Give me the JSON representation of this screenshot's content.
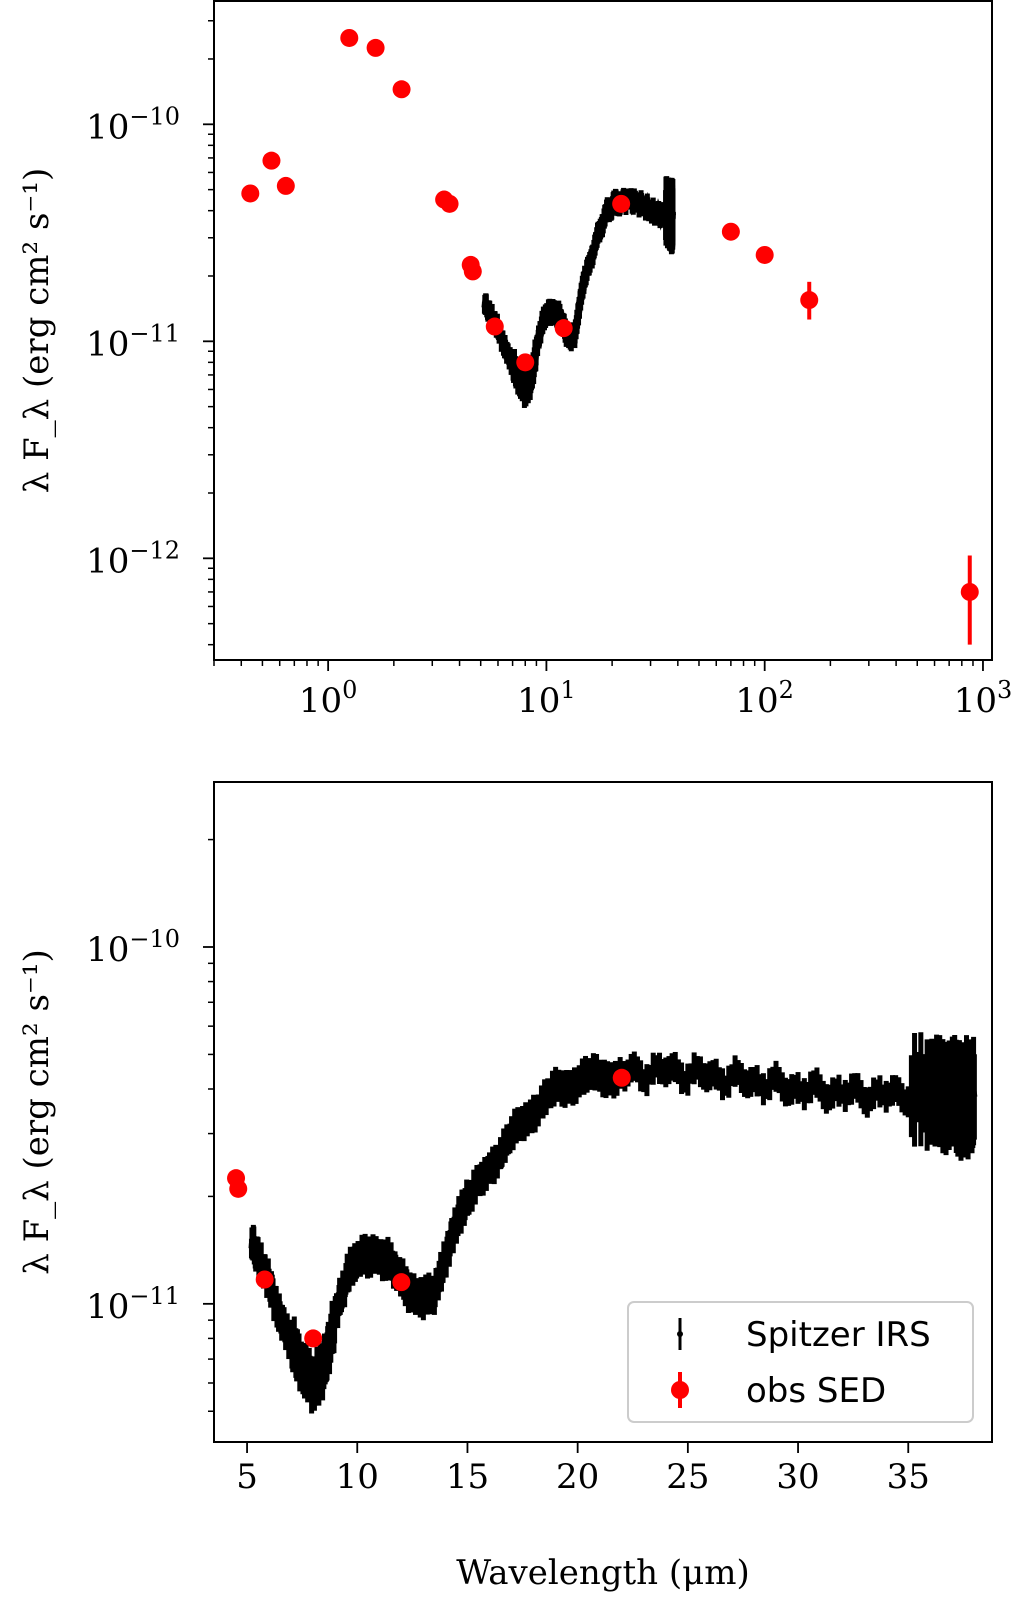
{
  "chart_data": [
    {
      "type": "scatter",
      "xscale": "log",
      "yscale": "log",
      "xlim": [
        0.3,
        1100
      ],
      "ylim": [
        3.4e-13,
        3.7e-10
      ],
      "xlabel": "",
      "ylabel": "λ F_λ (erg cm² s⁻¹)",
      "x_ticks": [
        {
          "base": "10",
          "exp": "0",
          "value": 1
        },
        {
          "base": "10",
          "exp": "1",
          "value": 10
        },
        {
          "base": "10",
          "exp": "2",
          "value": 100
        },
        {
          "base": "10",
          "exp": "3",
          "value": 1000
        }
      ],
      "y_ticks": [
        {
          "base": "10",
          "exp": "−12",
          "value": 1e-12
        },
        {
          "base": "10",
          "exp": "−11",
          "value": 1e-11
        },
        {
          "base": "10",
          "exp": "−10",
          "value": 1e-10
        }
      ],
      "series": [
        {
          "name": "Spitzer IRS",
          "color": "#000000",
          "kind": "spectrum",
          "x": [
            5.2,
            5.5,
            6.0,
            6.5,
            7.0,
            7.5,
            8.0,
            8.4,
            8.8,
            9.2,
            9.6,
            10.0,
            10.5,
            11.0,
            11.5,
            12.0,
            12.5,
            13.0,
            13.5,
            14.0,
            14.5,
            15.0,
            16.0,
            17.0,
            18.0,
            19.0,
            20.0,
            21.0,
            22.0,
            24.0,
            26.0,
            28.0,
            30.0,
            32.0,
            34.0,
            36.0,
            37.0,
            37.5,
            38.0
          ],
          "y": [
            1.5e-11,
            1.35e-11,
            1.15e-11,
            9.2e-12,
            7.8e-12,
            6.6e-12,
            6e-12,
            6.4e-12,
            8e-12,
            1.03e-11,
            1.22e-11,
            1.33e-11,
            1.38e-11,
            1.36e-11,
            1.3e-11,
            1.17e-11,
            1.07e-11,
            1.04e-11,
            1.06e-11,
            1.35e-11,
            1.7e-11,
            1.95e-11,
            2.4e-11,
            2.95e-11,
            3.5e-11,
            3.95e-11,
            4.25e-11,
            4.35e-11,
            4.4e-11,
            4.5e-11,
            4.35e-11,
            4.2e-11,
            4e-11,
            3.9e-11,
            3.85e-11,
            3.9e-11,
            4e-11,
            3.7e-11,
            3.8e-11
          ]
        },
        {
          "name": "obs SED",
          "color": "#ff0000",
          "kind": "points",
          "x": [
            0.44,
            0.55,
            0.64,
            1.25,
            1.65,
            2.17,
            3.4,
            3.6,
            4.5,
            4.6,
            5.8,
            8.0,
            12.0,
            22.0,
            70.0,
            100.0,
            160.0,
            870.0
          ],
          "y": [
            4.8e-11,
            6.8e-11,
            5.2e-11,
            2.5e-10,
            2.25e-10,
            1.45e-10,
            4.5e-11,
            4.3e-11,
            2.25e-11,
            2.1e-11,
            1.17e-11,
            8e-12,
            1.15e-11,
            4.3e-11,
            3.2e-11,
            2.5e-11,
            1.55e-11,
            7e-13
          ],
          "yerr_low": [
            0,
            0,
            0,
            0,
            0,
            0,
            0,
            0,
            0,
            0,
            0,
            0,
            0,
            0,
            0,
            0,
            2.9e-12,
            3e-13
          ],
          "yerr_high": [
            0,
            0,
            0,
            0,
            0,
            0,
            0,
            0,
            0,
            0,
            0,
            0,
            0,
            0,
            0,
            0,
            3.3e-12,
            3.3e-13
          ]
        }
      ]
    },
    {
      "type": "scatter",
      "xscale": "linear",
      "yscale": "log",
      "xlim": [
        3.5,
        38.8
      ],
      "ylim": [
        4.1e-12,
        2.9e-10
      ],
      "xlabel": "Wavelength (μm)",
      "ylabel": "λ F_λ (erg cm² s⁻¹)",
      "x_ticks": [
        5,
        10,
        15,
        20,
        25,
        30,
        35
      ],
      "y_ticks": [
        {
          "base": "10",
          "exp": "−11",
          "value": 1e-11
        },
        {
          "base": "10",
          "exp": "−10",
          "value": 1e-10
        }
      ],
      "legend": {
        "placement": "lower-right",
        "entries": [
          {
            "label": "Spitzer IRS",
            "color": "#000000"
          },
          {
            "label": "obs SED",
            "color": "#ff0000"
          }
        ]
      },
      "series": [
        {
          "name": "Spitzer IRS",
          "color": "#000000",
          "kind": "spectrum",
          "x": [
            5.2,
            5.5,
            6.0,
            6.5,
            7.0,
            7.5,
            8.0,
            8.4,
            8.8,
            9.2,
            9.6,
            10.0,
            10.5,
            11.0,
            11.5,
            12.0,
            12.5,
            13.0,
            13.5,
            14.0,
            14.5,
            15.0,
            16.0,
            17.0,
            18.0,
            19.0,
            20.0,
            21.0,
            22.0,
            24.0,
            26.0,
            28.0,
            30.0,
            32.0,
            34.0,
            36.0,
            37.0,
            37.5,
            38.0
          ],
          "y": [
            1.5e-11,
            1.35e-11,
            1.15e-11,
            9.2e-12,
            7.8e-12,
            6.6e-12,
            6e-12,
            6.4e-12,
            8e-12,
            1.03e-11,
            1.22e-11,
            1.33e-11,
            1.38e-11,
            1.36e-11,
            1.3e-11,
            1.17e-11,
            1.07e-11,
            1.04e-11,
            1.06e-11,
            1.35e-11,
            1.7e-11,
            1.95e-11,
            2.4e-11,
            2.95e-11,
            3.5e-11,
            3.95e-11,
            4.25e-11,
            4.35e-11,
            4.4e-11,
            4.5e-11,
            4.35e-11,
            4.2e-11,
            4e-11,
            3.9e-11,
            3.85e-11,
            3.9e-11,
            4e-11,
            3.7e-11,
            3.8e-11
          ]
        },
        {
          "name": "obs SED",
          "color": "#ff0000",
          "kind": "points",
          "x": [
            4.5,
            4.6,
            5.8,
            8.0,
            12.0,
            22.0
          ],
          "y": [
            2.25e-11,
            2.1e-11,
            1.17e-11,
            8e-12,
            1.15e-11,
            4.3e-11
          ]
        }
      ]
    }
  ]
}
